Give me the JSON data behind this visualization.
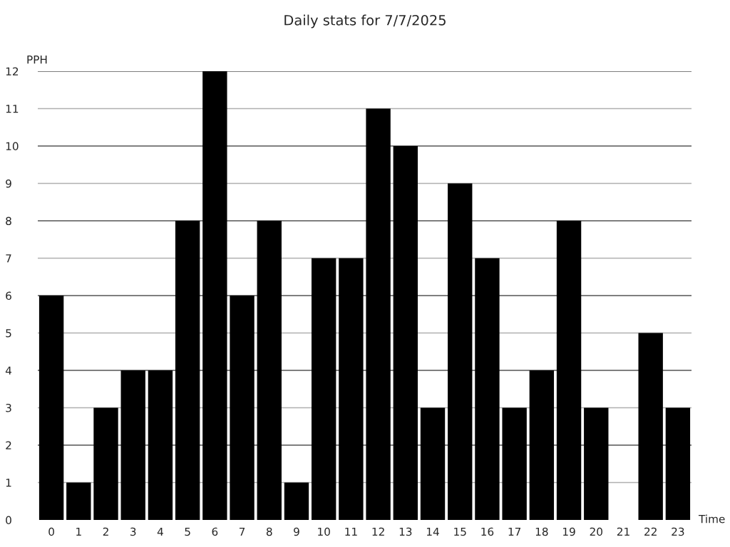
{
  "chart_data": {
    "type": "bar",
    "title": "Daily stats for 7/7/2025",
    "xlabel": "Time",
    "ylabel": "PPH",
    "categories": [
      "0",
      "1",
      "2",
      "3",
      "4",
      "5",
      "6",
      "7",
      "8",
      "9",
      "10",
      "11",
      "12",
      "13",
      "14",
      "15",
      "16",
      "17",
      "18",
      "19",
      "20",
      "21",
      "22",
      "23"
    ],
    "values": [
      6,
      1,
      3,
      4,
      4,
      8,
      12,
      6,
      8,
      1,
      7,
      7,
      11,
      10,
      3,
      9,
      7,
      3,
      4,
      8,
      3,
      0,
      5,
      3
    ],
    "color": "#000000",
    "ylim": [
      0,
      12
    ],
    "yticks": [
      0,
      1,
      2,
      3,
      4,
      5,
      6,
      7,
      8,
      9,
      10,
      11,
      12
    ],
    "grid": "y"
  }
}
